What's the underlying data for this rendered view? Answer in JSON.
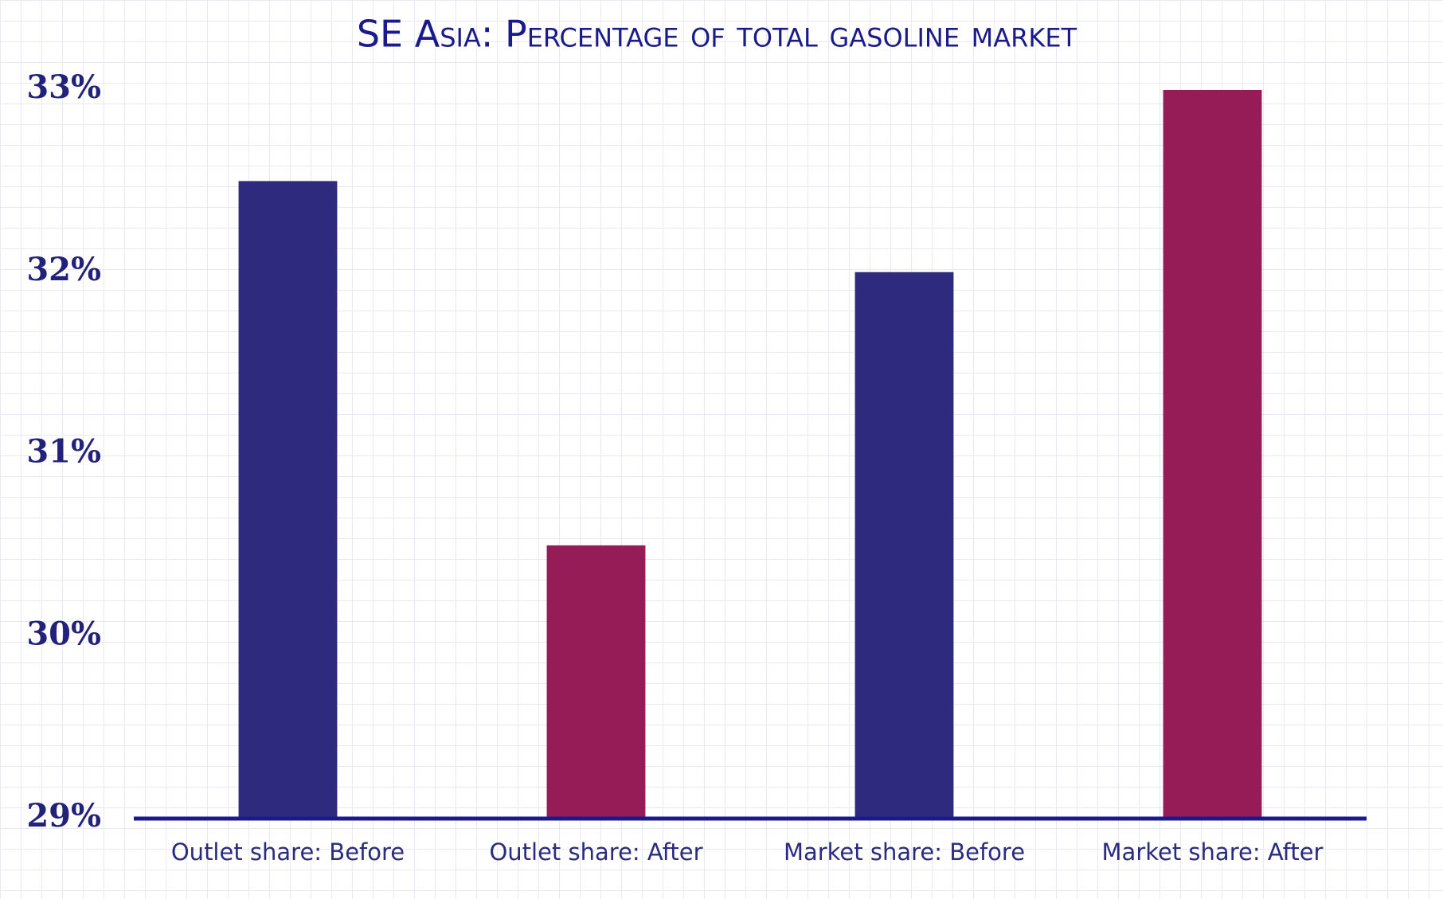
{
  "chart_data": {
    "type": "bar",
    "title": "SE Asia: Percentage of total gasoline market",
    "categories": [
      "Outlet share: Before",
      "Outlet share: After",
      "Market share: Before",
      "Market share: After"
    ],
    "values": [
      32.5,
      30.5,
      32,
      33
    ],
    "colors": [
      "#2e2a7e",
      "#951c57",
      "#2e2a7e",
      "#951c57"
    ],
    "ylim": [
      29,
      33
    ],
    "yticks": [
      {
        "value": 29,
        "label": "29%"
      },
      {
        "value": 30,
        "label": "30%"
      },
      {
        "value": 31,
        "label": "31%"
      },
      {
        "value": 32,
        "label": "32%"
      },
      {
        "value": 33,
        "label": "33%"
      }
    ],
    "grid": false
  }
}
